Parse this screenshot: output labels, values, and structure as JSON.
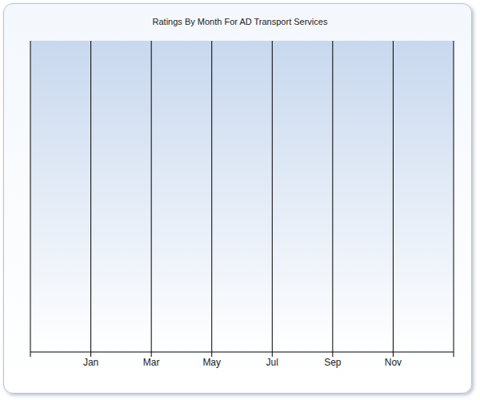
{
  "chart_data": {
    "type": "line",
    "title": "Ratings By Month For AD Transport Services",
    "categories": [
      null,
      "Jan",
      "Mar",
      "May",
      "Jul",
      "Sep",
      "Nov",
      null
    ],
    "values": [
      null,
      null,
      null,
      null,
      null,
      null,
      null,
      null
    ],
    "grid": true,
    "tick_labels": "x"
  }
}
